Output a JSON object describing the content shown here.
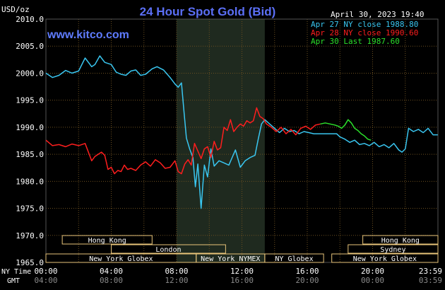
{
  "header": {
    "unit": "USD/oz",
    "title": "24 Hour Spot Gold (Bid)",
    "date": "April 30, 2023 19:40",
    "brand": "www.kitco.com"
  },
  "colors": {
    "background": "#000000",
    "grid": "#6b4f20",
    "axis_text": "#ffffff",
    "title": "#5b6ff5",
    "brand": "#5f7cff",
    "series_apr27": "#39c6f0",
    "series_apr28": "#ff1e1e",
    "series_apr30": "#2be02b",
    "nymex_shade": "#1f2a1f",
    "market_box": "#e8c47a"
  },
  "legend": [
    {
      "label": "Apr 27 NY close 1988.80",
      "color": "#39c6f0"
    },
    {
      "label": "Apr 28 NY close 1990.60",
      "color": "#ff1e1e"
    },
    {
      "label": "Apr 30 Last 1987.60",
      "color": "#2be02b"
    }
  ],
  "axis_labels": {
    "ny_time": "NY Time",
    "gmt": "GMT"
  },
  "markets": [
    {
      "name": "Hong Kong",
      "start": 1.0,
      "end": 6.5
    },
    {
      "name": "London",
      "start": 4.0,
      "end": 11.0
    },
    {
      "name": "New York Globex",
      "start": 0.0,
      "end": 9.2
    },
    {
      "name": "New York NYMEX",
      "start": 9.2,
      "end": 13.4
    },
    {
      "name": "NY Globex",
      "start": 13.4,
      "end": 17.0
    },
    {
      "name": "Hong Kong",
      "start": 19.4,
      "end": 24.0
    },
    {
      "name": "Sydney",
      "start": 18.5,
      "end": 24.0
    },
    {
      "name": "New York Globex",
      "start": 17.5,
      "end": 24.0
    }
  ],
  "chart_data": {
    "type": "line",
    "title": "24 Hour Spot Gold (Bid)",
    "ylabel": "USD/oz",
    "ylim": [
      1965,
      2010
    ],
    "y_ticks": [
      "2010.0",
      "2005.0",
      "2000.0",
      "1995.0",
      "1990.0",
      "1985.0",
      "1980.0",
      "1975.0",
      "1970.0",
      "1965.0"
    ],
    "xlim": [
      0,
      24
    ],
    "x_ticks_ny": [
      "00:00",
      "04:00",
      "08:00",
      "12:00",
      "16:00",
      "20:00",
      "23:59"
    ],
    "x_ticks_gmt": [
      "04:00",
      "08:00",
      "12:00",
      "16:00",
      "20:00",
      "00:00",
      "03:59"
    ],
    "grid": true,
    "legend_position": "top-right",
    "shaded_region": [
      8.0,
      13.4
    ],
    "series": [
      {
        "name": "Apr 27 NY close 1988.80",
        "x": [
          0,
          0.4,
          0.8,
          1.2,
          1.6,
          2.0,
          2.4,
          2.8,
          3.0,
          3.3,
          3.6,
          4.0,
          4.3,
          4.6,
          4.9,
          5.2,
          5.5,
          5.8,
          6.1,
          6.5,
          6.8,
          7.2,
          7.6,
          7.9,
          8.1,
          8.3,
          8.45,
          8.6,
          8.8,
          9.0,
          9.15,
          9.3,
          9.5,
          9.7,
          9.9,
          10.1,
          10.3,
          10.6,
          10.9,
          11.2,
          11.6,
          11.9,
          12.2,
          12.5,
          12.8,
          13.0,
          13.2,
          13.4,
          13.7,
          14.0,
          14.3,
          14.6,
          14.9,
          15.2,
          15.5,
          15.8,
          16.1,
          16.4,
          16.8,
          17.0,
          17.3,
          17.6,
          17.8,
          18.0,
          18.3,
          18.6,
          18.9,
          19.2,
          19.5,
          19.8,
          20.1,
          20.4,
          20.7,
          21.0,
          21.3,
          21.6,
          21.8,
          22.0,
          22.2,
          22.5,
          22.8,
          23.1,
          23.4,
          23.7,
          23.99
        ],
        "values": [
          2000.0,
          1999.2,
          1999.6,
          2000.5,
          2000.0,
          2000.4,
          2002.8,
          2001.2,
          2001.6,
          2003.2,
          2002.0,
          2001.6,
          2000.2,
          1999.8,
          1999.6,
          2000.4,
          2000.6,
          1999.6,
          1999.8,
          2000.8,
          2001.2,
          2000.6,
          1999.2,
          1998.0,
          1997.4,
          1998.2,
          1993.0,
          1988.0,
          1986.0,
          1984.4,
          1979.0,
          1983.2,
          1975.0,
          1983.0,
          1980.8,
          1986.0,
          1982.8,
          1983.8,
          1983.4,
          1983.0,
          1985.8,
          1982.6,
          1983.8,
          1984.4,
          1984.8,
          1987.8,
          1990.6,
          1991.4,
          1990.6,
          1989.8,
          1989.0,
          1989.8,
          1989.2,
          1989.4,
          1988.8,
          1989.2,
          1989.0,
          1988.8,
          1988.8,
          1988.8,
          1988.8,
          1988.8,
          1988.8,
          1988.2,
          1987.8,
          1987.2,
          1987.6,
          1986.8,
          1987.0,
          1986.6,
          1987.2,
          1986.4,
          1986.8,
          1986.2,
          1987.0,
          1985.8,
          1985.4,
          1986.0,
          1989.8,
          1989.2,
          1989.6,
          1989.0,
          1989.8,
          1988.6,
          1988.6
        ]
      },
      {
        "name": "Apr 28 NY close 1990.60",
        "x": [
          0,
          0.4,
          0.8,
          1.2,
          1.6,
          2.0,
          2.4,
          2.8,
          3.0,
          3.2,
          3.4,
          3.6,
          3.8,
          4.0,
          4.2,
          4.4,
          4.6,
          4.8,
          5.0,
          5.2,
          5.5,
          5.8,
          6.1,
          6.4,
          6.7,
          7.0,
          7.3,
          7.6,
          7.9,
          8.1,
          8.3,
          8.5,
          8.7,
          8.9,
          9.1,
          9.3,
          9.5,
          9.7,
          9.9,
          10.1,
          10.3,
          10.5,
          10.7,
          10.9,
          11.1,
          11.3,
          11.5,
          11.7,
          11.9,
          12.1,
          12.3,
          12.5,
          12.7,
          12.9,
          13.1,
          13.3,
          13.5,
          13.8,
          14.1,
          14.4,
          14.7,
          15.0,
          15.3,
          15.6,
          15.9,
          16.2,
          16.5,
          16.8
        ],
        "values": [
          1987.6,
          1986.6,
          1986.8,
          1986.4,
          1986.9,
          1986.6,
          1987.0,
          1983.8,
          1984.6,
          1985.0,
          1985.4,
          1984.8,
          1982.2,
          1982.6,
          1981.4,
          1982.0,
          1981.8,
          1983.0,
          1982.2,
          1982.4,
          1982.0,
          1983.0,
          1983.6,
          1982.8,
          1984.0,
          1983.4,
          1982.4,
          1982.6,
          1983.8,
          1981.8,
          1981.4,
          1983.2,
          1984.0,
          1983.0,
          1987.0,
          1985.6,
          1984.2,
          1986.0,
          1986.4,
          1984.4,
          1987.4,
          1985.8,
          1986.2,
          1990.0,
          1989.4,
          1991.4,
          1989.2,
          1990.0,
          1990.6,
          1990.2,
          1991.2,
          1990.8,
          1991.2,
          1993.6,
          1992.0,
          1991.6,
          1990.6,
          1990.0,
          1989.2,
          1990.0,
          1988.8,
          1989.6,
          1988.6,
          1989.8,
          1990.2,
          1989.6,
          1990.4,
          1990.6
        ]
      },
      {
        "name": "Apr 30 Last 1987.60",
        "x": [
          16.8,
          17.1,
          17.4,
          17.7,
          17.9,
          18.1,
          18.3,
          18.5,
          18.7,
          18.9,
          19.1,
          19.3,
          19.5,
          19.7,
          19.9
        ],
        "values": [
          1990.6,
          1990.8,
          1990.6,
          1990.4,
          1990.2,
          1989.8,
          1990.4,
          1991.4,
          1990.8,
          1989.8,
          1989.4,
          1988.8,
          1988.4,
          1987.8,
          1987.6
        ]
      }
    ]
  }
}
